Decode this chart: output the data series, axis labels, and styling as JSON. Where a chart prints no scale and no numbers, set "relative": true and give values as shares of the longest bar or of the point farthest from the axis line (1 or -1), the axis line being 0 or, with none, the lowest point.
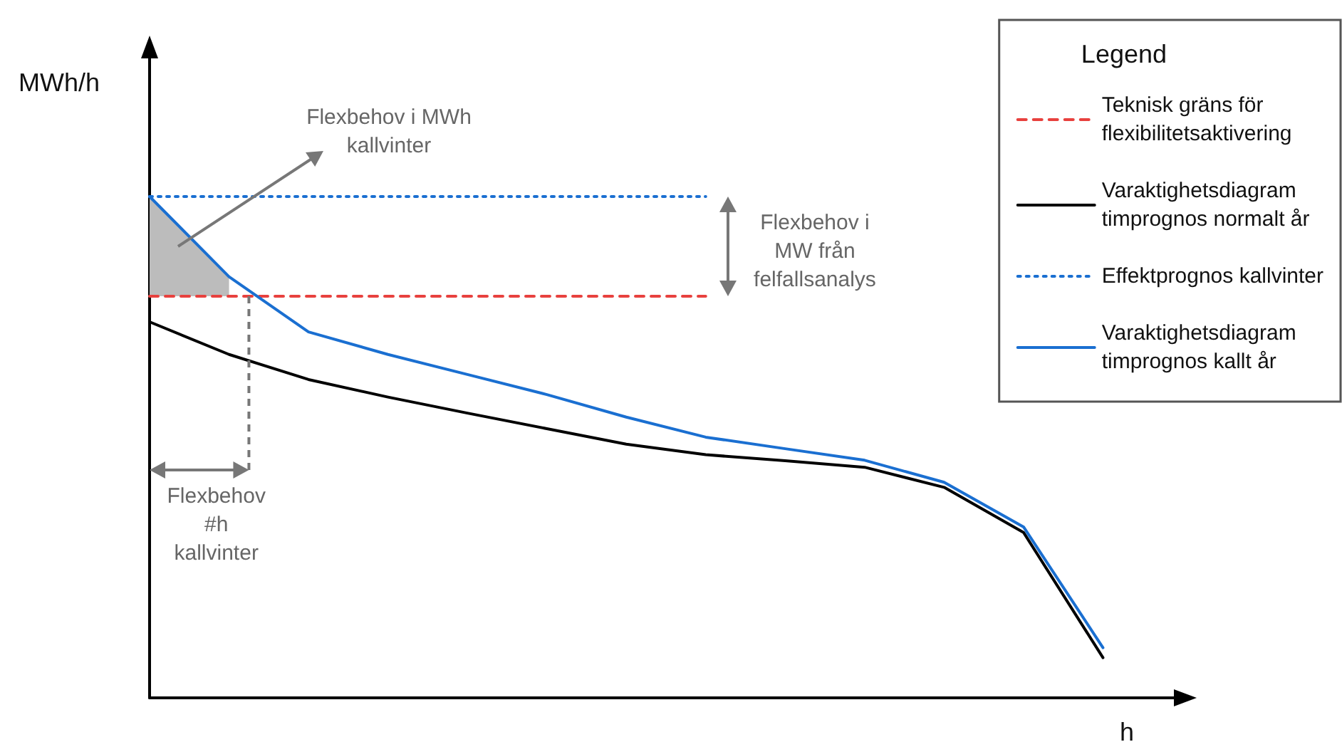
{
  "chart_data": {
    "type": "line",
    "relative": true,
    "ylabel": "MWh/h",
    "xlabel": "h",
    "legend_title": "Legend",
    "legend": "top right",
    "grid": false,
    "marker": "none",
    "categories": [
      null,
      null,
      null,
      null,
      null,
      null,
      null,
      null,
      null,
      null,
      null,
      null,
      null,
      null
    ],
    "series": [
      {
        "name": "Teknisk gräns för\nflexibilitetsaktivering",
        "color": "#e8413e",
        "line_style": "dashed",
        "values": [
          0.801,
          0.801,
          0.801,
          0.801,
          0.801,
          0.801,
          0.801,
          0.801,
          null,
          null,
          null,
          null,
          null,
          null
        ]
      },
      {
        "name": "Varaktighetsdiagram\ntimprognos normalt år",
        "color": "#000000",
        "line_style": "solid",
        "values": [
          0.75,
          0.685,
          0.635,
          0.6,
          0.568,
          0.537,
          0.506,
          0.485,
          0.473,
          0.46,
          0.42,
          0.33,
          0.08,
          null
        ]
      },
      {
        "name": "Effektprognos kallvinter",
        "color": "#1a6fd1",
        "line_style": "dotted",
        "values": [
          1.0,
          1.0,
          1.0,
          1.0,
          1.0,
          1.0,
          1.0,
          1.0,
          null,
          null,
          null,
          null,
          null,
          null
        ]
      },
      {
        "name": "Varaktighetsdiagram\ntimprognos kallt år",
        "color": "#1a6fd1",
        "line_style": "solid",
        "values": [
          1.0,
          0.84,
          0.73,
          0.685,
          0.645,
          0.605,
          0.56,
          0.52,
          0.497,
          0.474,
          0.43,
          0.341,
          0.1,
          null
        ]
      },
      {
        "type": "area",
        "color": "#bcbcbc",
        "values": [
          1.0,
          0.84,
          null,
          null,
          null,
          null,
          null,
          null,
          null,
          null,
          null,
          null,
          null,
          null
        ]
      }
    ],
    "annotations": [
      "Flexbehov i MWh\nkallvinter",
      "Flexbehov i\nMW från\nfelfallsanalys",
      "Flexbehov\n#h\nkallvinter"
    ]
  }
}
